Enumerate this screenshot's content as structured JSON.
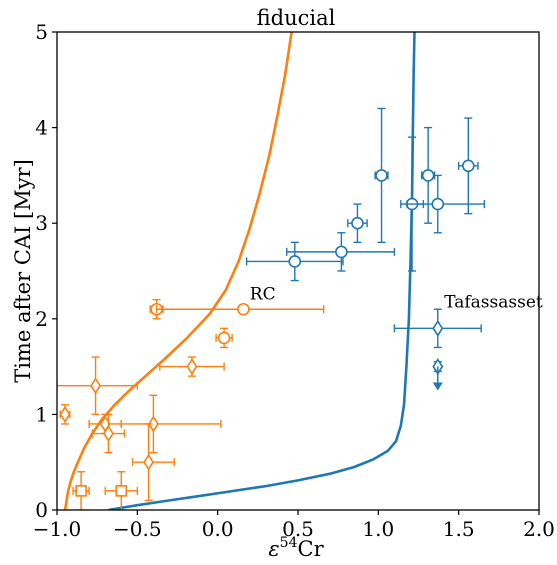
{
  "chart_data": {
    "type": "scatter",
    "title": "fiducial",
    "xlabel_sym": "ε",
    "xlabel_sup": "54",
    "xlabel_rest": "Cr",
    "ylabel": "Time after CAI [Myr]",
    "xlim": [
      -1.0,
      2.0
    ],
    "ylim": [
      0,
      5
    ],
    "xticks": [
      -1.0,
      -0.5,
      0.0,
      0.5,
      1.0,
      1.5,
      2.0
    ],
    "xtick_labels": [
      "−1.0",
      "−0.5",
      "0.0",
      "0.5",
      "1.0",
      "1.5",
      "2.0"
    ],
    "yticks": [
      0,
      1,
      2,
      3,
      4,
      5
    ],
    "ytick_labels": [
      "0",
      "1",
      "2",
      "3",
      "4",
      "5"
    ],
    "grid": false,
    "annotations": [
      {
        "text": "RC",
        "x": 0.2,
        "y": 2.2
      },
      {
        "text": "Tafassasset",
        "x": 1.41,
        "y": 2.12
      }
    ],
    "colors": {
      "orange": "#ff7f0e",
      "blue": "#1f77b4"
    },
    "curves": [
      {
        "color": "#ff7f0e",
        "x": [
          -0.95,
          -0.94,
          -0.93,
          -0.915,
          -0.895,
          -0.87,
          -0.83,
          -0.78,
          -0.72,
          -0.64,
          -0.55,
          -0.45,
          -0.33,
          -0.19,
          -0.05,
          0.05,
          0.13,
          0.2,
          0.26,
          0.32,
          0.375,
          0.42,
          0.46
        ],
        "y": [
          0.0,
          0.1,
          0.2,
          0.3,
          0.4,
          0.5,
          0.65,
          0.8,
          0.95,
          1.1,
          1.25,
          1.4,
          1.58,
          1.8,
          2.05,
          2.3,
          2.6,
          2.95,
          3.3,
          3.7,
          4.15,
          4.55,
          5.0
        ]
      },
      {
        "color": "#1f77b4",
        "x": [
          -0.68,
          -0.5,
          -0.3,
          -0.1,
          0.1,
          0.3,
          0.5,
          0.7,
          0.85,
          0.97,
          1.06,
          1.11,
          1.14,
          1.16,
          1.175,
          1.19,
          1.2,
          1.21,
          1.215,
          1.22,
          1.225
        ],
        "y": [
          0.0,
          0.05,
          0.1,
          0.15,
          0.2,
          0.25,
          0.31,
          0.38,
          0.45,
          0.53,
          0.62,
          0.72,
          0.88,
          1.1,
          1.5,
          2.0,
          2.6,
          3.3,
          4.0,
          4.6,
          5.0
        ]
      }
    ],
    "series": [
      {
        "color": "#ff7f0e",
        "marker": "circle",
        "points": [
          {
            "x": -0.38,
            "y": 2.1,
            "xlo": -0.42,
            "xhi": -0.34,
            "ylo": 2.0,
            "yhi": 2.2
          },
          {
            "x": 0.16,
            "y": 2.1,
            "xlo": -0.38,
            "xhi": 0.66,
            "ylo": 2.1,
            "yhi": 2.1
          },
          {
            "x": 0.04,
            "y": 1.8,
            "xlo": -0.01,
            "xhi": 0.09,
            "ylo": 1.7,
            "yhi": 1.9
          }
        ]
      },
      {
        "color": "#ff7f0e",
        "marker": "diamond",
        "points": [
          {
            "x": -0.76,
            "y": 1.3,
            "xlo": -1.0,
            "xhi": -0.5,
            "ylo": 1.0,
            "yhi": 1.6
          },
          {
            "x": -0.16,
            "y": 1.5,
            "xlo": -0.36,
            "xhi": 0.04,
            "ylo": 1.4,
            "yhi": 1.6
          },
          {
            "x": -0.95,
            "y": 1.0,
            "xlo": -0.98,
            "xhi": -0.92,
            "ylo": 0.9,
            "yhi": 1.1
          },
          {
            "x": -0.7,
            "y": 0.9,
            "xlo": -0.8,
            "xhi": -0.6,
            "ylo": 0.8,
            "yhi": 1.0
          },
          {
            "x": -0.4,
            "y": 0.9,
            "xlo": -0.6,
            "xhi": 0.02,
            "ylo": 0.6,
            "yhi": 1.2
          },
          {
            "x": -0.68,
            "y": 0.8,
            "xlo": -0.78,
            "xhi": -0.58,
            "ylo": 0.6,
            "yhi": 1.0
          },
          {
            "x": -0.43,
            "y": 0.5,
            "xlo": -0.53,
            "xhi": -0.27,
            "ylo": 0.1,
            "yhi": 0.9
          }
        ]
      },
      {
        "color": "#ff7f0e",
        "marker": "square",
        "points": [
          {
            "x": -0.85,
            "y": 0.2,
            "xlo": -0.9,
            "xhi": -0.8,
            "ylo": 0.0,
            "yhi": 0.4
          },
          {
            "x": -0.6,
            "y": 0.2,
            "xlo": -0.7,
            "xhi": -0.5,
            "ylo": 0.0,
            "yhi": 0.4
          }
        ]
      },
      {
        "color": "#1f77b4",
        "marker": "circle",
        "points": [
          {
            "x": 0.48,
            "y": 2.6,
            "xlo": 0.18,
            "xhi": 0.78,
            "ylo": 2.4,
            "yhi": 2.8
          },
          {
            "x": 0.77,
            "y": 2.7,
            "xlo": 0.43,
            "xhi": 1.1,
            "ylo": 2.5,
            "yhi": 2.9
          },
          {
            "x": 0.87,
            "y": 3.0,
            "xlo": 0.81,
            "xhi": 0.93,
            "ylo": 2.8,
            "yhi": 3.2
          },
          {
            "x": 1.02,
            "y": 3.5,
            "xlo": 0.98,
            "xhi": 1.06,
            "ylo": 2.8,
            "yhi": 4.2
          },
          {
            "x": 1.21,
            "y": 3.2,
            "xlo": 1.14,
            "xhi": 1.28,
            "ylo": 2.5,
            "yhi": 3.9
          },
          {
            "x": 1.31,
            "y": 3.5,
            "xlo": 1.27,
            "xhi": 1.35,
            "ylo": 3.0,
            "yhi": 4.0
          },
          {
            "x": 1.37,
            "y": 3.2,
            "xlo": 1.18,
            "xhi": 1.66,
            "ylo": 2.9,
            "yhi": 3.5
          },
          {
            "x": 1.56,
            "y": 3.6,
            "xlo": 1.5,
            "xhi": 1.62,
            "ylo": 3.1,
            "yhi": 4.1
          }
        ]
      },
      {
        "color": "#1f77b4",
        "marker": "diamond",
        "points": [
          {
            "x": 1.37,
            "y": 1.9,
            "xlo": 1.1,
            "xhi": 1.64,
            "ylo": 1.7,
            "yhi": 2.1
          },
          {
            "x": 1.37,
            "y": 1.5,
            "xlo": 1.37,
            "xhi": 1.37,
            "ylo": 1.45,
            "yhi": 1.55
          }
        ]
      },
      {
        "color": "#1f77b4",
        "marker": "upper-limit-arrow",
        "points": [
          {
            "x": 1.37,
            "y": 1.5,
            "ytip": 1.25
          }
        ]
      }
    ]
  }
}
